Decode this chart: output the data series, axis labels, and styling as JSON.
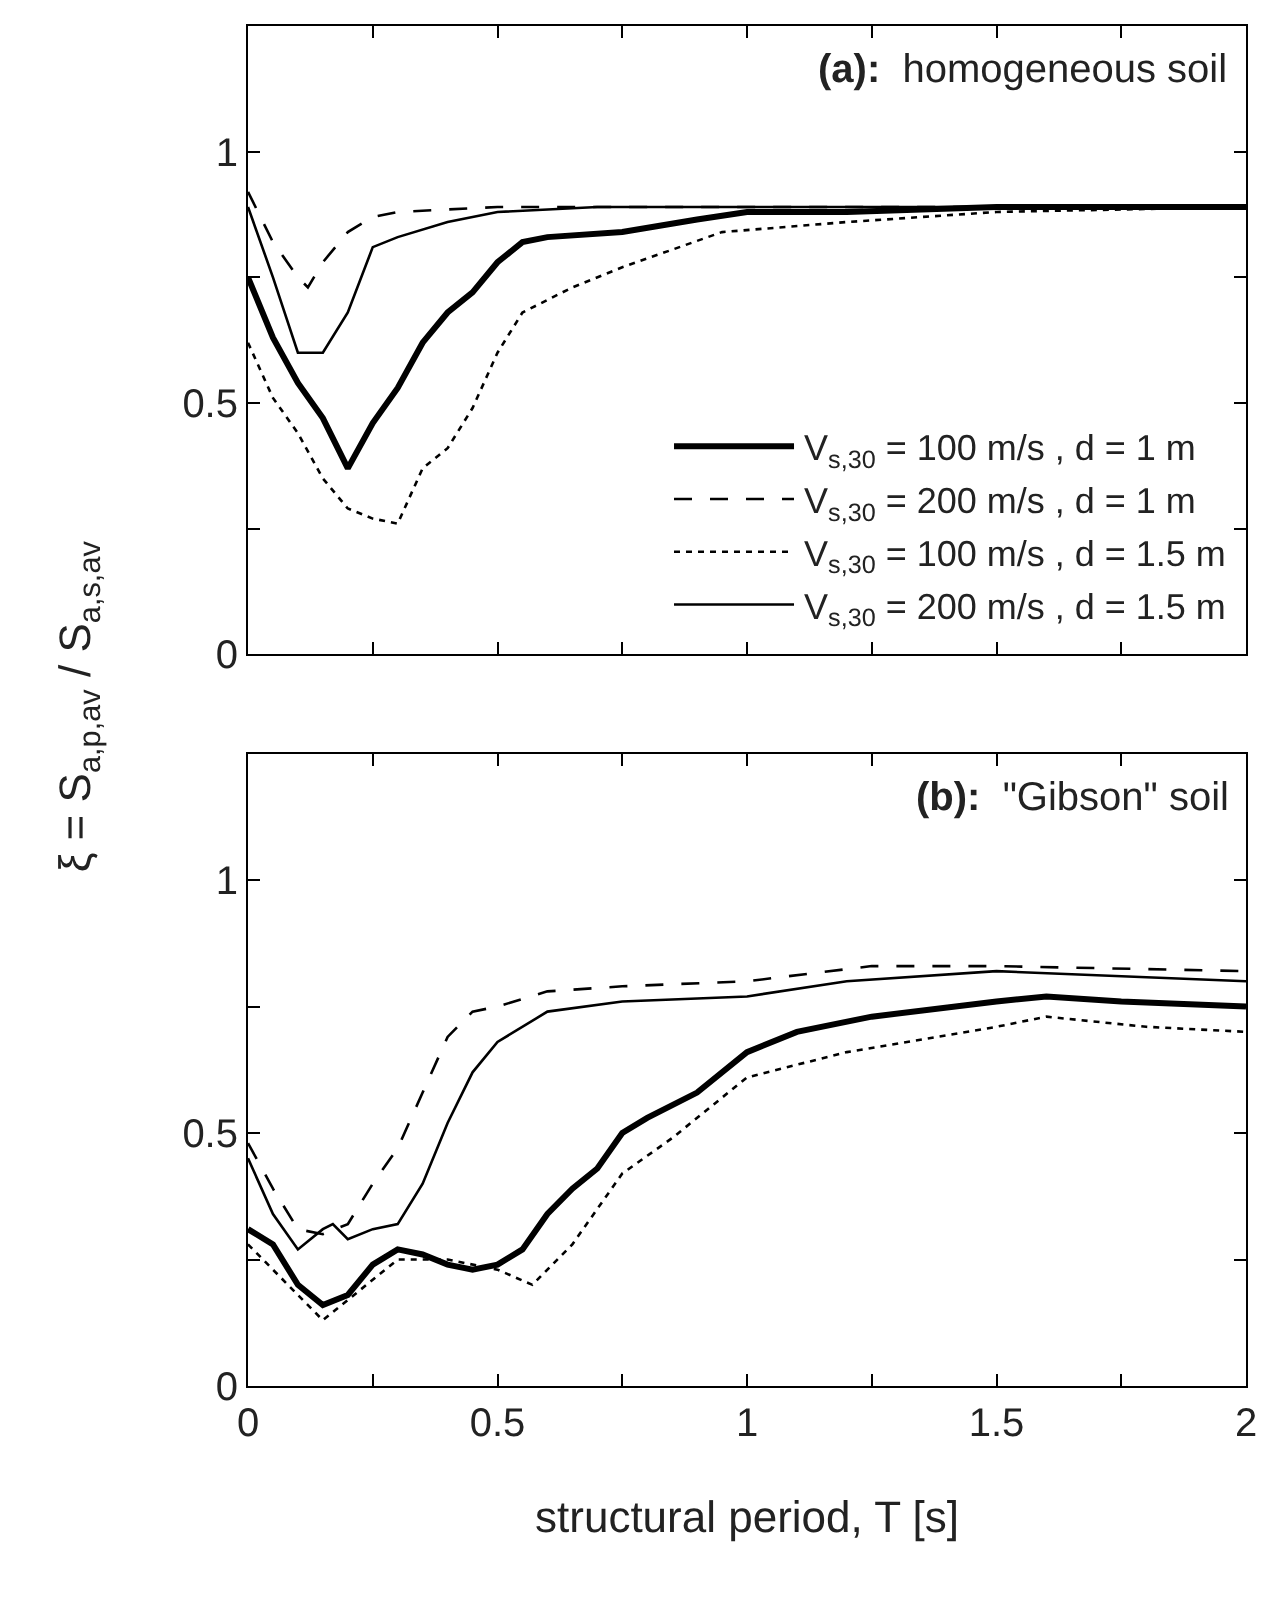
{
  "chart_data": [
    {
      "type": "line",
      "annotations": [
        "(a):  homogeneous soil"
      ],
      "ylabel": "ξ = S$_{a,p,av}$ / S$_{a,s,av}$",
      "xlim": [
        0,
        2
      ],
      "ylim": [
        0,
        1.25
      ],
      "xticks": [
        0,
        {
          "value": 0.25,
          "label": null
        },
        0.5,
        {
          "value": 0.75,
          "label": null
        },
        1,
        {
          "value": 1.25,
          "label": null
        },
        1.5,
        {
          "value": 1.75,
          "label": null
        },
        2
      ],
      "yticks": [
        0,
        {
          "value": 0.25,
          "label": null
        },
        0.5,
        {
          "value": 0.75,
          "label": null
        },
        1,
        {
          "value": 1.25,
          "label": null
        }
      ],
      "tick_labels": "y",
      "legend": "bottom right",
      "marker": "none",
      "series": [
        {
          "name": "V$_{s,30}$ = 100 m/s , d = 1 m",
          "color": "#000000",
          "line_style": "solid",
          "x": [
            0,
            0.05,
            0.1,
            0.15,
            0.2,
            0.25,
            0.3,
            0.35,
            0.4,
            0.45,
            0.5,
            0.55,
            0.6,
            0.75,
            0.9,
            1.0,
            1.2,
            1.5,
            2
          ],
          "values": [
            0.75,
            0.63,
            0.54,
            0.47,
            0.37,
            0.46,
            0.53,
            0.62,
            0.68,
            0.72,
            0.78,
            0.82,
            0.83,
            0.84,
            0.865,
            0.88,
            0.88,
            0.89,
            0.89
          ]
        },
        {
          "name": "V$_{s,30}$ = 200 m/s , d = 1 m",
          "color": "#000000",
          "line_style": "dashed",
          "x": [
            0,
            0.05,
            0.1,
            0.12,
            0.15,
            0.2,
            0.25,
            0.3,
            0.5,
            1.0,
            2
          ],
          "values": [
            0.92,
            0.82,
            0.75,
            0.73,
            0.78,
            0.84,
            0.87,
            0.88,
            0.89,
            0.89,
            0.89
          ]
        },
        {
          "name": "V$_{s,30}$ = 100 m/s , d = 1.5 m",
          "color": "#000000",
          "line_style": "dotted",
          "x": [
            0,
            0.05,
            0.1,
            0.15,
            0.2,
            0.25,
            0.3,
            0.35,
            0.4,
            0.45,
            0.5,
            0.55,
            0.65,
            0.75,
            0.95,
            1.2,
            1.5,
            2
          ],
          "values": [
            0.62,
            0.51,
            0.44,
            0.35,
            0.29,
            0.27,
            0.26,
            0.37,
            0.41,
            0.49,
            0.6,
            0.68,
            0.73,
            0.77,
            0.84,
            0.86,
            0.88,
            0.89
          ]
        },
        {
          "name": "V$_{s,30}$ = 200 m/s , d = 1.5 m",
          "color": "#000000",
          "line_style": "solid",
          "x": [
            0,
            0.05,
            0.1,
            0.15,
            0.2,
            0.25,
            0.3,
            0.4,
            0.5,
            0.7,
            1.0,
            2
          ],
          "values": [
            0.89,
            0.75,
            0.6,
            0.6,
            0.68,
            0.81,
            0.83,
            0.86,
            0.88,
            0.89,
            0.89,
            0.89
          ]
        }
      ]
    },
    {
      "type": "line",
      "annotations": [
        "(b):  \"Gibson\" soil"
      ],
      "xlabel": "structural period, T [s]",
      "xlim": [
        0,
        2
      ],
      "ylim": [
        0,
        1.25
      ],
      "xticks": [
        0,
        {
          "value": 0.25,
          "label": null
        },
        0.5,
        {
          "value": 0.75,
          "label": null
        },
        1,
        {
          "value": 1.25,
          "label": null
        },
        1.5,
        {
          "value": 1.75,
          "label": null
        },
        2
      ],
      "yticks": [
        0,
        {
          "value": 0.25,
          "label": null
        },
        0.5,
        {
          "value": 0.75,
          "label": null
        },
        1,
        {
          "value": 1.25,
          "label": null
        }
      ],
      "marker": "none",
      "series": [
        {
          "color": "#000000",
          "line_style": "solid",
          "x": [
            0,
            0.05,
            0.1,
            0.15,
            0.2,
            0.25,
            0.3,
            0.35,
            0.4,
            0.45,
            0.5,
            0.55,
            0.6,
            0.65,
            0.7,
            0.75,
            0.8,
            0.9,
            1.0,
            1.1,
            1.25,
            1.5,
            1.6,
            1.75,
            2
          ],
          "values": [
            0.31,
            0.28,
            0.2,
            0.16,
            0.18,
            0.24,
            0.27,
            0.26,
            0.24,
            0.23,
            0.24,
            0.27,
            0.34,
            0.39,
            0.43,
            0.5,
            0.53,
            0.58,
            0.66,
            0.7,
            0.73,
            0.76,
            0.77,
            0.76,
            0.75
          ]
        },
        {
          "color": "#000000",
          "line_style": "dashed",
          "x": [
            0,
            0.05,
            0.1,
            0.15,
            0.2,
            0.25,
            0.3,
            0.35,
            0.4,
            0.45,
            0.5,
            0.6,
            0.75,
            1.0,
            1.25,
            1.5,
            2
          ],
          "values": [
            0.48,
            0.39,
            0.31,
            0.3,
            0.32,
            0.4,
            0.47,
            0.58,
            0.69,
            0.74,
            0.75,
            0.78,
            0.79,
            0.8,
            0.83,
            0.83,
            0.82
          ]
        },
        {
          "color": "#000000",
          "line_style": "dotted",
          "x": [
            0,
            0.1,
            0.15,
            0.2,
            0.3,
            0.4,
            0.5,
            0.57,
            0.65,
            0.75,
            0.85,
            1.0,
            1.2,
            1.5,
            1.6,
            1.8,
            2
          ],
          "values": [
            0.28,
            0.18,
            0.13,
            0.17,
            0.25,
            0.25,
            0.23,
            0.2,
            0.28,
            0.42,
            0.49,
            0.61,
            0.66,
            0.71,
            0.73,
            0.71,
            0.7
          ]
        },
        {
          "color": "#000000",
          "line_style": "solid",
          "x": [
            0,
            0.05,
            0.1,
            0.15,
            0.17,
            0.2,
            0.25,
            0.3,
            0.35,
            0.4,
            0.45,
            0.5,
            0.6,
            0.75,
            1.0,
            1.2,
            1.5,
            2
          ],
          "values": [
            0.45,
            0.34,
            0.27,
            0.31,
            0.32,
            0.29,
            0.31,
            0.32,
            0.4,
            0.52,
            0.62,
            0.68,
            0.74,
            0.76,
            0.77,
            0.8,
            0.82,
            0.8
          ]
        }
      ]
    }
  ]
}
